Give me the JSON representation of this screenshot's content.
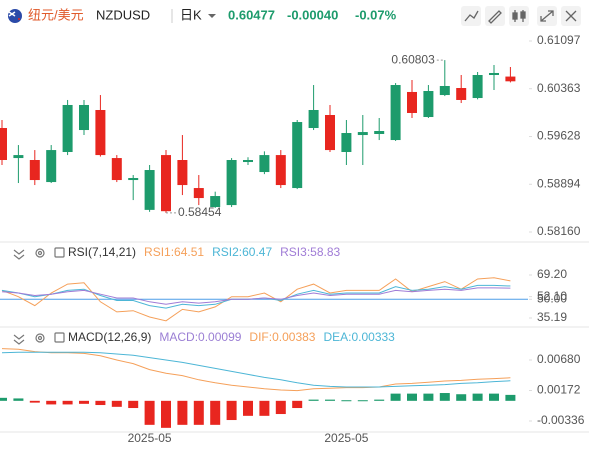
{
  "header": {
    "name": "纽元/美元",
    "symbol": "NZDUSD",
    "period": "日K",
    "price": "0.60477",
    "change": "-0.00040",
    "change_pct": "-0.07%"
  },
  "chart_data": [
    {
      "type": "candlestick",
      "open": [
        0.59759,
        0.59297,
        0.59267,
        0.58928,
        0.5939,
        0.59728,
        0.60036,
        0.59297,
        0.58959,
        0.585,
        0.59343,
        0.59267,
        0.58836,
        0.58544,
        0.58574,
        0.59236,
        0.59082,
        0.59343,
        0.58836,
        0.59759,
        0.59959,
        0.5939,
        0.59651,
        0.59667,
        0.59574,
        0.60313,
        0.59928,
        0.60266,
        0.60374,
        0.6022,
        0.60574,
        0.6055
      ],
      "high": [
        0.59882,
        0.59497,
        0.5942,
        0.59497,
        0.6019,
        0.6019,
        0.60266,
        0.59343,
        0.59036,
        0.5919,
        0.5942,
        0.59651,
        0.59036,
        0.5878,
        0.59297,
        0.5931,
        0.594,
        0.5942,
        0.59882,
        0.6042,
        0.60113,
        0.59882,
        0.59959,
        0.59913,
        0.6045,
        0.60497,
        0.6042,
        0.60803,
        0.60574,
        0.6062,
        0.60728,
        0.60697
      ],
      "low": [
        0.5919,
        0.58913,
        0.58882,
        0.58913,
        0.59343,
        0.59651,
        0.5932,
        0.58928,
        0.58651,
        0.5847,
        0.58454,
        0.58728,
        0.58574,
        0.5853,
        0.58544,
        0.5919,
        0.5905,
        0.58836,
        0.5882,
        0.59728,
        0.5939,
        0.5919,
        0.5919,
        0.59574,
        0.5956,
        0.59913,
        0.59913,
        0.6025,
        0.60143,
        0.602,
        0.60343,
        0.6046
      ],
      "close": [
        0.59267,
        0.59343,
        0.58959,
        0.5942,
        0.60113,
        0.60113,
        0.59343,
        0.58959,
        0.5899,
        0.59113,
        0.5848,
        0.58882,
        0.58682,
        0.58713,
        0.59267,
        0.59267,
        0.59343,
        0.58882,
        0.59851,
        0.60036,
        0.5942,
        0.59682,
        0.59697,
        0.59713,
        0.6042,
        0.5999,
        0.60328,
        0.60405,
        0.6019,
        0.60574,
        0.60605,
        0.60477
      ],
      "up_color": "#1d9b6c",
      "down_color": "#e8261f",
      "ylim": [
        0.58037,
        0.61266
      ],
      "yticks": [
        0.61097,
        0.60363,
        0.59628,
        0.58894,
        {
          "value": 0.5816,
          "label": "0.58160"
        }
      ]
    },
    {
      "type": "line",
      "title": "RSI(7,14,21)",
      "series": [
        {
          "name": "RSI1:64.51",
          "color": "#f5a05a",
          "values": [
            57,
            52,
            45,
            55,
            62,
            63,
            48,
            40,
            41,
            36,
            33,
            42,
            40,
            44,
            52,
            52,
            55,
            48,
            58,
            62,
            55,
            57,
            57,
            57,
            66,
            56,
            60,
            64,
            58,
            66,
            67,
            64.51
          ]
        },
        {
          "name": "RSI2:60.47",
          "color": "#4db6d6",
          "values": [
            57,
            55,
            52,
            54,
            57,
            58,
            53,
            49,
            49,
            45,
            43,
            46,
            45,
            46,
            50,
            50,
            51,
            49,
            54,
            57,
            54,
            55,
            55,
            55,
            60,
            57,
            58,
            60,
            58,
            61,
            61,
            60.47
          ]
        },
        {
          "name": "RSI3:58.83",
          "color": "#a07cd6",
          "values": [
            56,
            55,
            53,
            54,
            56,
            57,
            54,
            51,
            51,
            48,
            46,
            48,
            47,
            48,
            50,
            50,
            51,
            50,
            53,
            55,
            53,
            54,
            54,
            54,
            57,
            56,
            57,
            58,
            57,
            59,
            59,
            58.83
          ]
        }
      ],
      "ylim": [
        29.65,
        92.93
      ],
      "yticks": [
        {
          "value": 69.2,
          "label": "69.20"
        },
        {
          "value": 52.1,
          "label": "52.10"
        },
        {
          "value": 50,
          "label": "50.00"
        },
        35.19
      ],
      "reference_line": 50,
      "reference_color": "#4d9ee8"
    },
    {
      "type": "macd",
      "title": "MACD(12,26,9)",
      "histogram": {
        "name": "MACD:0.00099",
        "color": "#9b7fd4",
        "values": [
          0.0005,
          0.0004,
          -0.0003,
          -0.0006,
          -0.0006,
          -0.0005,
          -0.0007,
          -0.001,
          -0.0012,
          -0.004,
          -0.0045,
          -0.004,
          -0.004,
          -0.004,
          -0.0032,
          -0.0025,
          -0.0025,
          -0.0022,
          -0.0012,
          0.0002,
          0.0002,
          0.0001,
          0.0001,
          0.0002,
          0.0012,
          0.0012,
          0.0012,
          0.0013,
          0.0011,
          0.0012,
          0.0012,
          0.00099
        ]
      },
      "series": [
        {
          "name": "DIF:0.00383",
          "color": "#f5a05a",
          "values": [
            0.0087,
            0.0086,
            0.0082,
            0.008,
            0.008,
            0.0079,
            0.0075,
            0.0068,
            0.0062,
            0.0052,
            0.0046,
            0.0042,
            0.0035,
            0.003,
            0.0026,
            0.0023,
            0.002,
            0.0018,
            0.0017,
            0.002,
            0.0021,
            0.0022,
            0.0022,
            0.0023,
            0.0028,
            0.0029,
            0.0031,
            0.0033,
            0.0034,
            0.0036,
            0.0037,
            0.00383
          ]
        },
        {
          "name": "DEA:0.00333",
          "color": "#4db6d6",
          "values": [
            0.008,
            0.0081,
            0.0081,
            0.0081,
            0.0081,
            0.0081,
            0.008,
            0.0078,
            0.0076,
            0.0072,
            0.0068,
            0.0064,
            0.0059,
            0.0054,
            0.0049,
            0.0044,
            0.0039,
            0.0035,
            0.003,
            0.0026,
            0.0024,
            0.0023,
            0.0023,
            0.0023,
            0.0024,
            0.0025,
            0.0026,
            0.0027,
            0.0029,
            0.003,
            0.0032,
            0.00333
          ]
        }
      ],
      "up_color": "#1d9b6c",
      "down_color": "#e8261f",
      "ylim": [
        -0.00486,
        0.0118
      ],
      "yticks": [
        {
          "value": 0.0068,
          "label": "0.00680"
        },
        0.00172,
        -0.00336
      ],
      "categories": [
        null,
        null,
        null,
        null,
        null,
        null,
        null,
        null,
        null,
        "2025-05",
        null,
        null,
        null,
        null,
        null,
        null,
        null,
        null,
        null,
        null,
        null,
        "2025-05",
        null,
        null,
        null,
        null,
        null,
        null,
        null,
        null,
        null,
        null
      ]
    }
  ]
}
